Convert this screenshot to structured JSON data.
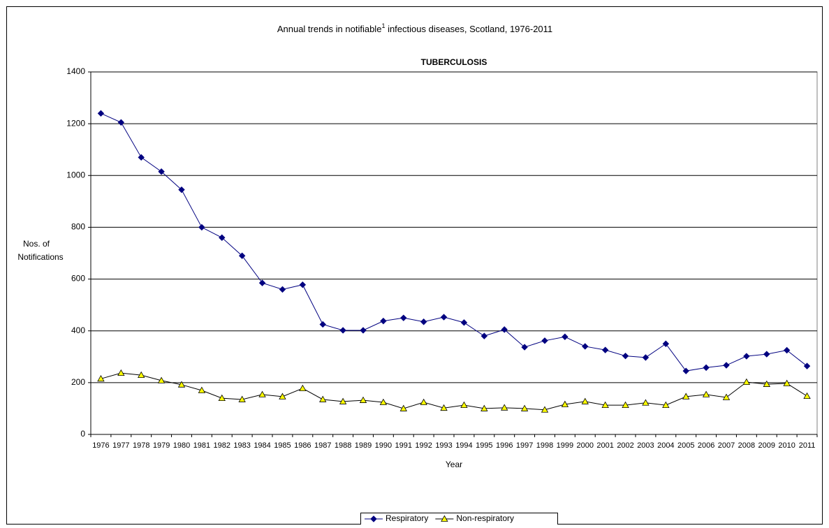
{
  "chart_data": {
    "type": "line",
    "title": [
      "Annual trends in notifiable",
      "1",
      " infectious diseases, Scotland, 1976-2011"
    ],
    "subtitle": "TUBERCULOSIS",
    "y_label": [
      "Nos. of",
      "Notifications"
    ],
    "x_label": "Year",
    "categories": [
      "1976",
      "1977",
      "1978",
      "1979",
      "1980",
      "1981",
      "1982",
      "1983",
      "1984",
      "1985",
      "1986",
      "1987",
      "1988",
      "1989",
      "1990",
      "1991",
      "1992",
      "1993",
      "1994",
      "1995",
      "1996",
      "1997",
      "1998",
      "1999",
      "2000",
      "2001",
      "2002",
      "2003",
      "2004",
      "2005",
      "2006",
      "2007",
      "2008",
      "2009",
      "2010",
      "2011"
    ],
    "series": [
      {
        "name": "Respiratory",
        "color": "#000080",
        "marker": "diamond",
        "marker_color": "#000080",
        "values": [
          1240,
          1205,
          1070,
          1015,
          945,
          800,
          760,
          690,
          585,
          560,
          578,
          425,
          402,
          402,
          438,
          450,
          435,
          453,
          432,
          380,
          405,
          337,
          362,
          377,
          340,
          326,
          303,
          297,
          350,
          245,
          258,
          267,
          302,
          310,
          325,
          264
        ]
      },
      {
        "name": "Non-respiratory",
        "color": "#000000",
        "marker": "triangle",
        "marker_color": "#ffff00",
        "values": [
          215,
          237,
          229,
          208,
          192,
          170,
          140,
          135,
          154,
          146,
          178,
          135,
          127,
          132,
          124,
          100,
          124,
          102,
          113,
          100,
          103,
          100,
          95,
          116,
          127,
          113,
          113,
          122,
          113,
          146,
          154,
          143,
          202,
          194,
          197,
          148
        ]
      }
    ],
    "ylim": [
      0,
      1400
    ],
    "yticks": [
      0,
      200,
      400,
      600,
      800,
      1000,
      1200,
      1400
    ],
    "grid": true,
    "legend": "bottom"
  }
}
